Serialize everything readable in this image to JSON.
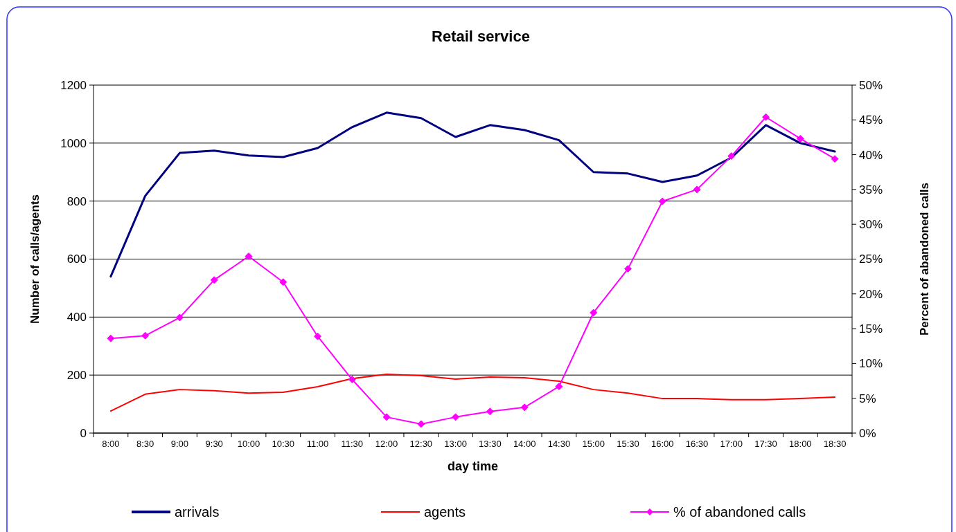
{
  "chart_data": {
    "type": "line",
    "title": "Retail service",
    "xlabel": "day time",
    "ylabel": "Number of calls/agents",
    "y2label": "Percent of abandoned calls",
    "categories": [
      "8:00",
      "8:30",
      "9:00",
      "9:30",
      "10:00",
      "10:30",
      "11:00",
      "11:30",
      "12:00",
      "12:30",
      "13:00",
      "13:30",
      "14:00",
      "14:30",
      "15:00",
      "15:30",
      "16:00",
      "16:30",
      "17:00",
      "17:30",
      "18:00",
      "18:30"
    ],
    "series": [
      {
        "name": "arrivals",
        "color": "#000080",
        "marker": "none",
        "values": [
          540,
          818,
          966,
          974,
          957,
          952,
          983,
          1055,
          1105,
          1086,
          1021,
          1062,
          1045,
          1010,
          900,
          895,
          866,
          888,
          950,
          1062,
          1000,
          971
        ]
      },
      {
        "name": "agents",
        "color": "#ff0000",
        "marker": "none",
        "values": [
          76,
          134,
          150,
          146,
          138,
          141,
          160,
          188,
          203,
          198,
          186,
          193,
          191,
          179,
          150,
          138,
          119,
          119,
          115,
          115,
          119,
          124
        ]
      },
      {
        "name": "% of abandoned calls",
        "color": "#ff00ff",
        "marker": "diamond",
        "axis": "y2",
        "values": [
          13.6,
          14.0,
          16.6,
          22.0,
          25.4,
          21.7,
          13.9,
          7.7,
          2.3,
          1.3,
          2.3,
          3.1,
          3.7,
          6.7,
          17.3,
          23.6,
          33.3,
          35.0,
          39.8,
          45.4,
          42.3,
          39.4
        ]
      }
    ],
    "ylim": [
      0,
      1200
    ],
    "yticks": [
      0,
      200,
      400,
      600,
      800,
      1000,
      1200
    ],
    "y2lim": [
      0,
      50
    ],
    "y2ticks": [
      {
        "value": 0,
        "label": "0%"
      },
      {
        "value": 5,
        "label": "5%"
      },
      {
        "value": 10,
        "label": "10%"
      },
      {
        "value": 15,
        "label": "15%"
      },
      {
        "value": 20,
        "label": "20%"
      },
      {
        "value": 25,
        "label": "25%"
      },
      {
        "value": 30,
        "label": "30%"
      },
      {
        "value": 35,
        "label": "35%"
      },
      {
        "value": 40,
        "label": "40%"
      },
      {
        "value": 45,
        "label": "45%"
      },
      {
        "value": 50,
        "label": "50%"
      }
    ],
    "grid": "y",
    "legend": "bottom",
    "line_style": "solid"
  }
}
